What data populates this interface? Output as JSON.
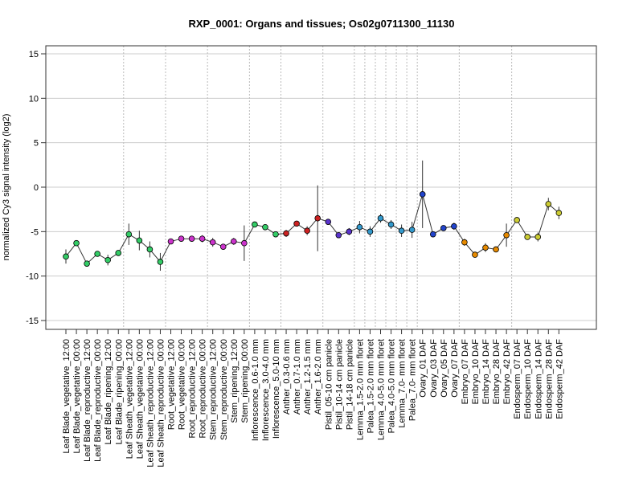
{
  "chart_data": {
    "type": "line",
    "title": "RXP_0001: Organs and tissues; Os02g0711300_11130",
    "ylabel": "normalized Cy3 signal intensity (log2)",
    "xlabel": "",
    "ylim": [
      -15,
      15
    ],
    "yticks": [
      -15,
      -10,
      -5,
      0,
      5,
      10,
      15
    ],
    "grid": true,
    "legend": "none",
    "categories": [
      "Leaf Blade_vegetative_12:00",
      "Leaf Blade_vegetative_00:00",
      "Leaf Blade_reproductive_12:00",
      "Leaf Blade_reproductive_00:00",
      "Leaf Blade_ripening_12:00",
      "Leaf Blade_ripening_00:00",
      "Leaf Sheath_vegetative_12:00",
      "Leaf Sheath_vegetative_00:00",
      "Leaf Sheath_reproductive_12:00",
      "Leaf Sheath_reproductive_00:00",
      "Root_vegetative_12:00",
      "Root_vegetative_00:00",
      "Root_reproductive_12:00",
      "Root_reproductive_00:00",
      "Stem_reproductive_12:00",
      "Stem_reproductive_00:00",
      "Stem_ripening_12:00",
      "Stem_ripening_00:00",
      "Inflorescence_0.6-1.0 mm",
      "Inflorescence_3.0-4.0 mm",
      "Inflorescence_5.0-10 mm",
      "Anther_0.3-0.6 mm",
      "Anther_0.7-1.0 mm",
      "Anther_1.2-1.5 mm",
      "Anther_1.6-2.0 mm",
      "Pistil_05-10 cm panicle",
      "Pistil_10-14 cm panicle",
      "Pistil_14-18 cm panicle",
      "Lemma_1.5-2.0 mm floret",
      "Palea_1.5-2.0 mm floret",
      "Lemma_4.0-5.0 mm floret",
      "Palea_4.0-5.0 mm floret",
      "Lemma_7.0- mm floret",
      "Palea_7.0- mm floret",
      "Ovary_01 DAF",
      "Ovary_03 DAF",
      "Ovary_05 DAF",
      "Ovary_07 DAF",
      "Embryo_07 DAF",
      "Embryo_10 DAF",
      "Embryo_14 DAF",
      "Embryo_28 DAF",
      "Embryo_42 DAF",
      "Endosperm_07 DAF",
      "Endosperm_10 DAF",
      "Endosperm_14 DAF",
      "Endosperm_28 DAF",
      "Endosperm_42 DAF"
    ],
    "series": [
      {
        "values": [
          -7.8,
          -6.3,
          -8.6,
          -7.5,
          -8.2,
          -7.4,
          -5.3,
          -6.0,
          -7.0,
          -8.4,
          -6.1,
          -5.8,
          -5.8,
          -5.8,
          -6.2,
          -6.7,
          -6.1,
          -6.3,
          -4.2,
          -4.5,
          -5.3,
          -5.2,
          -4.1,
          -4.9,
          -3.5,
          -3.9,
          -5.4,
          -5.0,
          -4.5,
          -5.0,
          -3.5,
          -4.2,
          -4.9,
          -4.8,
          -0.8,
          -5.3,
          -4.6,
          -4.4,
          -6.2,
          -7.6,
          -6.8,
          -7.0,
          -5.4,
          -3.7,
          -5.6,
          -5.6,
          -1.9,
          -2.9
        ],
        "errors": [
          0.8,
          0.0,
          0.0,
          0.0,
          0.6,
          0.0,
          1.2,
          1.1,
          0.9,
          1.0,
          0.0,
          0.0,
          0.0,
          0.4,
          0.5,
          0.3,
          0.4,
          2.0,
          0.0,
          0.0,
          0.0,
          0.4,
          0.0,
          0.5,
          3.7,
          0.0,
          0.0,
          0.4,
          0.7,
          0.6,
          0.5,
          0.5,
          0.7,
          0.9,
          3.8,
          0.0,
          0.0,
          0.4,
          0.4,
          0.0,
          0.5,
          0.0,
          1.3,
          0.0,
          0.0,
          0.5,
          0.7,
          0.7
        ],
        "colors": [
          "#33cc66",
          "#33cc66",
          "#33cc66",
          "#33cc66",
          "#33cc66",
          "#33cc66",
          "#33cc66",
          "#33cc66",
          "#33cc66",
          "#33cc66",
          "#cc33cc",
          "#cc33cc",
          "#cc33cc",
          "#cc33cc",
          "#cc33cc",
          "#cc33cc",
          "#cc33cc",
          "#cc33cc",
          "#33cc66",
          "#33cc66",
          "#33cc66",
          "#cc2222",
          "#cc2222",
          "#cc2222",
          "#cc2222",
          "#5a33cc",
          "#5a33cc",
          "#5a33cc",
          "#3399cc",
          "#3399cc",
          "#3399cc",
          "#3399cc",
          "#3399cc",
          "#3399cc",
          "#2244cc",
          "#2244cc",
          "#2244cc",
          "#2244cc",
          "#e68a00",
          "#e68a00",
          "#e68a00",
          "#e68a00",
          "#e68a00",
          "#cccc33",
          "#cccc33",
          "#cccc33",
          "#cccc33",
          "#cccc33"
        ]
      }
    ]
  }
}
